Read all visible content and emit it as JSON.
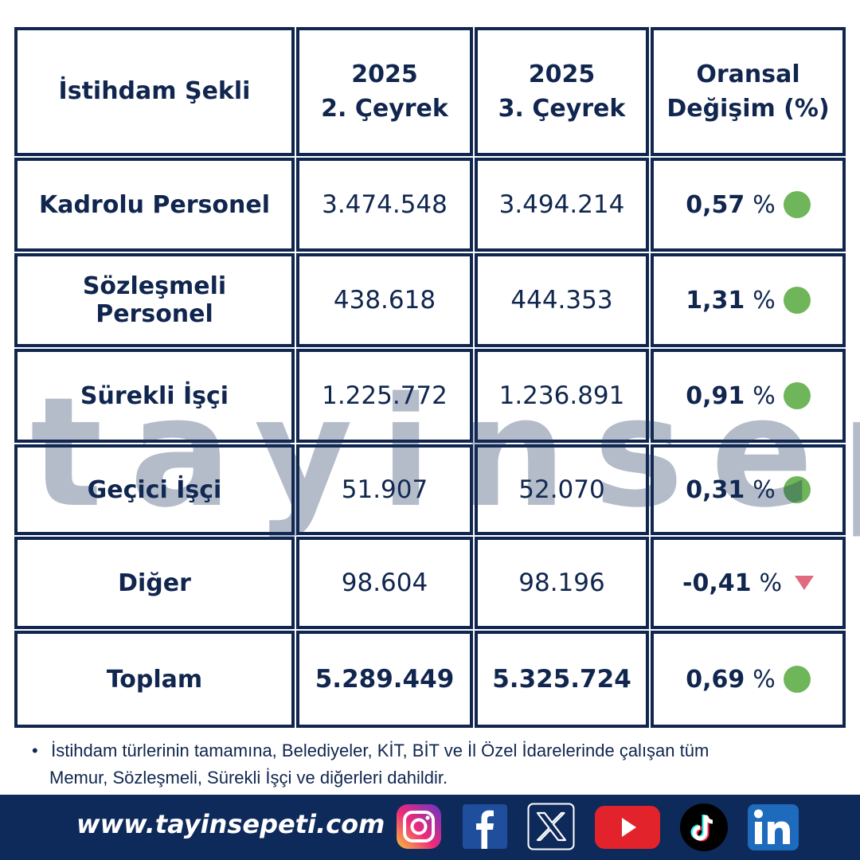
{
  "table": {
    "headers": {
      "col1": "İstihdam Şekli",
      "col2_line1": "2025",
      "col2_line2": "2. Çeyrek",
      "col3_line1": "2025",
      "col3_line2": "3. Çeyrek",
      "col4_line1": "Oransal",
      "col4_line2": "Değişim (%)"
    },
    "rows": [
      {
        "label": "Kadrolu Personel",
        "q2": "3.474.548",
        "q3": "3.494.214",
        "change": "0,57",
        "pct": "%",
        "trend": "up"
      },
      {
        "label": "Sözleşmeli Personel",
        "q2": "438.618",
        "q3": "444.353",
        "change": "1,31",
        "pct": "%",
        "trend": "up"
      },
      {
        "label": "Sürekli İşçi",
        "q2": "1.225.772",
        "q3": "1.236.891",
        "change": "0,91",
        "pct": "%",
        "trend": "up"
      },
      {
        "label": "Geçici İşçi",
        "q2": "51.907",
        "q3": "52.070",
        "change": "0,31",
        "pct": "%",
        "trend": "up"
      },
      {
        "label": "Diğer",
        "q2": "98.604",
        "q3": "98.196",
        "change": "-0,41",
        "pct": "%",
        "trend": "down"
      },
      {
        "label": "Toplam",
        "q2": "5.289.449",
        "q3": "5.325.724",
        "change": "0,69",
        "pct": "%",
        "trend": "up"
      }
    ]
  },
  "watermark": "tayinsepeti",
  "note": {
    "line1": "İstihdam türlerinin tamamına, Belediyeler, KİT, BİT ve İl Özel İdarelerinde çalışan tüm",
    "line2": "Memur, Sözleşmeli, Sürekli İşçi ve diğerleri dahildir."
  },
  "footer": {
    "website": "www.tayinsepeti.com",
    "social_icons": [
      "instagram-icon",
      "facebook-icon",
      "x-icon",
      "youtube-icon",
      "tiktok-icon",
      "linkedin-icon"
    ]
  },
  "colors": {
    "navy": "#10264f",
    "footer_bg": "#0e2a5a",
    "up_green": "#6fb55a",
    "down_red": "#e06a80"
  }
}
